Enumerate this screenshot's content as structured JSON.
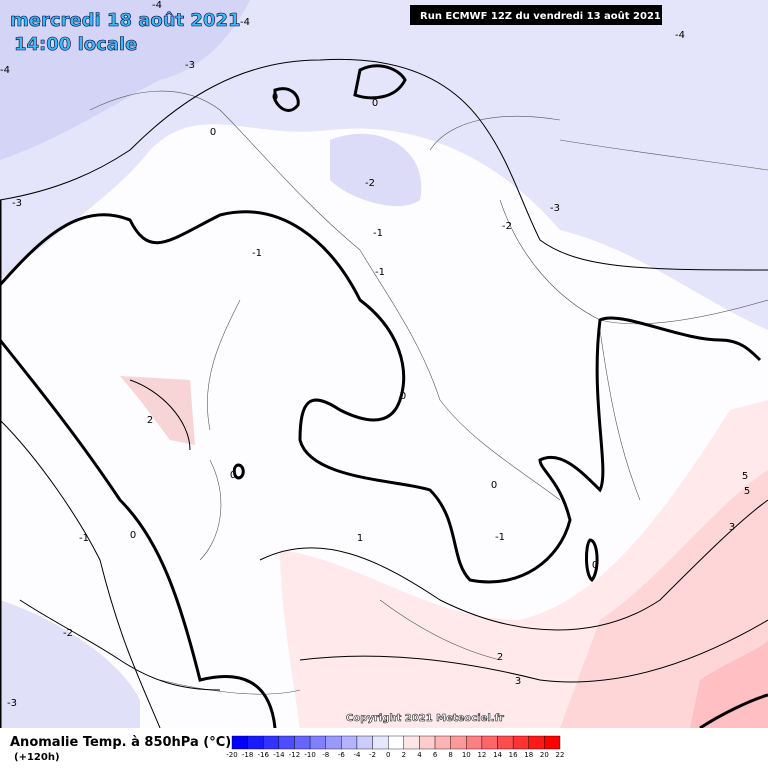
{
  "header": {
    "date": "mercredi 18 août 2021",
    "time": "14:00 locale",
    "run": "Run ECMWF 12Z du vendredi 13 août 2021"
  },
  "contour_labels": [
    -4,
    -3,
    -4,
    -4,
    -4,
    0,
    0,
    0,
    -2,
    -3,
    -2,
    -3,
    -1,
    -1,
    -1,
    0,
    2,
    0,
    0,
    -1,
    0,
    1,
    0,
    -1,
    -2,
    -3,
    2,
    3,
    5,
    5,
    3
  ],
  "copyright": "Copyright 2021 Meteociel.fr",
  "legend": {
    "title": "Anomalie Temp. à 850hPa (°C)",
    "lead_time": "(+120h)",
    "ticks": [
      -20,
      -18,
      -16,
      -14,
      -12,
      -10,
      -8,
      -6,
      -4,
      -2,
      0,
      2,
      4,
      6,
      8,
      10,
      12,
      14,
      16,
      18,
      20,
      22
    ],
    "colors": [
      "#0000ff",
      "#1a1aff",
      "#3333ff",
      "#4d4dff",
      "#6666ff",
      "#8080ff",
      "#9999ff",
      "#b3b3ff",
      "#ccccff",
      "#e6e6ff",
      "#ffffff",
      "#ffe6e6",
      "#ffcccc",
      "#ffb3b3",
      "#ff9999",
      "#ff8080",
      "#ff6666",
      "#ff4d4d",
      "#ff3333",
      "#ff1a1a",
      "#ff0000"
    ]
  }
}
